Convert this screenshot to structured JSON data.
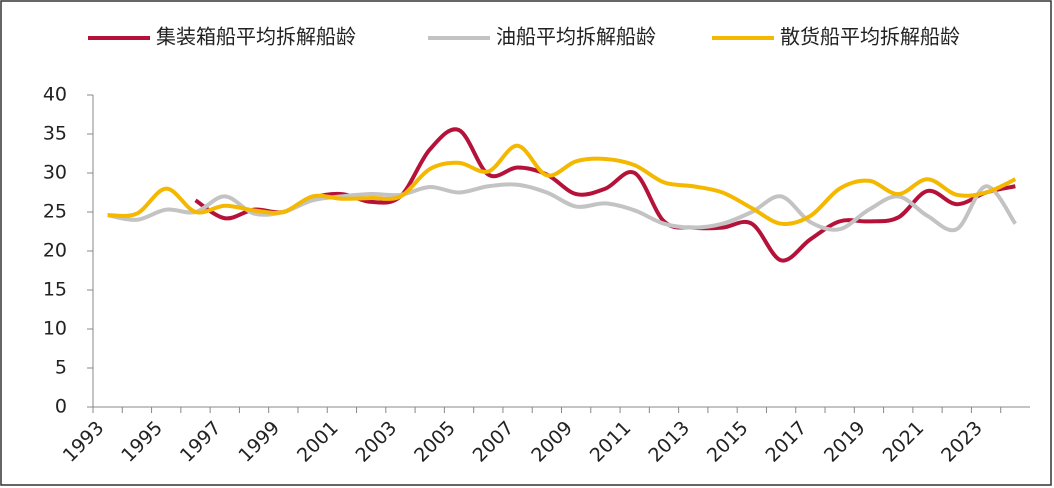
{
  "chart_data": {
    "type": "line",
    "categories": [
      "1993",
      null,
      "1995",
      null,
      "1997",
      null,
      "1999",
      null,
      "2001",
      null,
      "2003",
      null,
      "2005",
      null,
      "2007",
      null,
      "2009",
      null,
      "2011",
      null,
      "2013",
      null,
      "2015",
      null,
      "2017",
      null,
      "2019",
      null,
      "2021",
      null,
      "2023",
      null
    ],
    "series": [
      {
        "name": "集装箱船平均拆解船龄",
        "color": "#b5123a",
        "values": [
          null,
          null,
          null,
          26.5,
          24.2,
          25.3,
          25,
          26.8,
          27.3,
          26.3,
          27,
          33,
          35.5,
          29.8,
          30.7,
          29.8,
          27.3,
          28,
          30,
          23.8,
          23,
          23,
          23.5,
          18.8,
          21.5,
          23.8,
          23.8,
          24.3,
          27.7,
          26,
          27.5,
          28.3
        ]
      },
      {
        "name": "油船平均拆解船龄",
        "color": "#c3c3c3",
        "values": [
          24.6,
          24,
          25.3,
          25,
          27,
          24.8,
          25,
          26.5,
          27,
          27.3,
          27.2,
          28.2,
          27.5,
          28.3,
          28.5,
          27.5,
          25.7,
          26.1,
          25.2,
          23.5,
          23,
          23.5,
          25,
          27,
          23.7,
          22.8,
          25.3,
          27,
          24.5,
          22.8,
          28.3,
          23.5
        ]
      },
      {
        "name": "散货船平均拆解船龄",
        "color": "#f5b800",
        "values": [
          24.6,
          24.8,
          28,
          25,
          25.8,
          25.2,
          25,
          27,
          26.7,
          26.8,
          27,
          30.5,
          31.3,
          30.2,
          33.5,
          29.7,
          31.5,
          31.8,
          31,
          28.8,
          28.3,
          27.5,
          25.5,
          23.5,
          24.5,
          28,
          29,
          27.3,
          29.2,
          27.2,
          27.5,
          29.2
        ]
      }
    ],
    "ylim": [
      0,
      40
    ],
    "yticks": [
      0,
      5,
      10,
      15,
      20,
      25,
      30,
      35,
      40
    ]
  }
}
